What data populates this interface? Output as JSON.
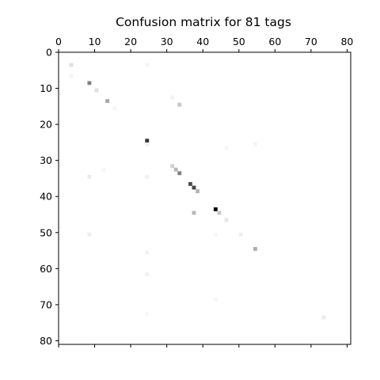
{
  "chart_data": {
    "type": "heatmap",
    "title": "Confusion matrix for 81 tags",
    "size": 81,
    "colormap": "grayscale (white = 0, black = max)",
    "x_axis_position": "top",
    "xlim": [
      0,
      81
    ],
    "ylim": [
      81,
      0
    ],
    "x_ticks": [
      0,
      10,
      20,
      30,
      40,
      50,
      60,
      70,
      80
    ],
    "y_ticks": [
      0,
      10,
      20,
      30,
      40,
      50,
      60,
      70,
      80
    ],
    "x_tick_labels": [
      "0",
      "10",
      "20",
      "30",
      "40",
      "50",
      "60",
      "70",
      "80"
    ],
    "y_tick_labels": [
      "0",
      "10",
      "20",
      "30",
      "40",
      "50",
      "60",
      "70",
      "80"
    ],
    "cells": [
      {
        "row": 3,
        "col": 3,
        "value": 0.12
      },
      {
        "row": 3,
        "col": 24,
        "value": 0.04
      },
      {
        "row": 6,
        "col": 3,
        "value": 0.05
      },
      {
        "row": 8,
        "col": 8,
        "value": 0.5
      },
      {
        "row": 10,
        "col": 10,
        "value": 0.12
      },
      {
        "row": 13,
        "col": 13,
        "value": 0.35
      },
      {
        "row": 12,
        "col": 31,
        "value": 0.05
      },
      {
        "row": 14,
        "col": 33,
        "value": 0.22
      },
      {
        "row": 15,
        "col": 15,
        "value": 0.04
      },
      {
        "row": 24,
        "col": 24,
        "value": 0.8
      },
      {
        "row": 25,
        "col": 24,
        "value": 0.06
      },
      {
        "row": 25,
        "col": 54,
        "value": 0.04
      },
      {
        "row": 26,
        "col": 46,
        "value": 0.04
      },
      {
        "row": 31,
        "col": 31,
        "value": 0.18
      },
      {
        "row": 32,
        "col": 32,
        "value": 0.28
      },
      {
        "row": 32,
        "col": 12,
        "value": 0.04
      },
      {
        "row": 33,
        "col": 33,
        "value": 0.5
      },
      {
        "row": 34,
        "col": 8,
        "value": 0.08
      },
      {
        "row": 34,
        "col": 24,
        "value": 0.05
      },
      {
        "row": 36,
        "col": 36,
        "value": 0.7
      },
      {
        "row": 37,
        "col": 37,
        "value": 0.72
      },
      {
        "row": 38,
        "col": 38,
        "value": 0.3
      },
      {
        "row": 43,
        "col": 43,
        "value": 1.0
      },
      {
        "row": 44,
        "col": 37,
        "value": 0.28
      },
      {
        "row": 44,
        "col": 44,
        "value": 0.22
      },
      {
        "row": 46,
        "col": 46,
        "value": 0.1
      },
      {
        "row": 50,
        "col": 8,
        "value": 0.07
      },
      {
        "row": 50,
        "col": 43,
        "value": 0.04
      },
      {
        "row": 50,
        "col": 50,
        "value": 0.06
      },
      {
        "row": 54,
        "col": 54,
        "value": 0.32
      },
      {
        "row": 55,
        "col": 24,
        "value": 0.05
      },
      {
        "row": 61,
        "col": 24,
        "value": 0.05
      },
      {
        "row": 68,
        "col": 43,
        "value": 0.04
      },
      {
        "row": 72,
        "col": 24,
        "value": 0.03
      },
      {
        "row": 73,
        "col": 73,
        "value": 0.08
      }
    ]
  }
}
